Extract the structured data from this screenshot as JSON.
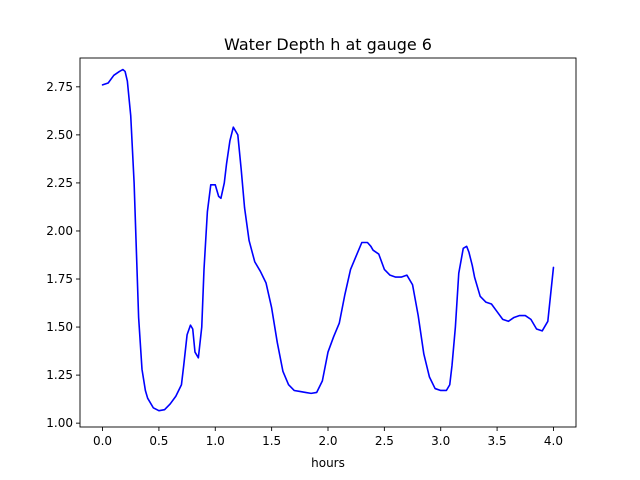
{
  "chart_data": {
    "type": "line",
    "title": "Water Depth h at gauge 6",
    "xlabel": "hours",
    "ylabel": "",
    "xlim": [
      -0.2,
      4.2
    ],
    "ylim": [
      0.98,
      2.9
    ],
    "xticks": [
      0.0,
      0.5,
      1.0,
      1.5,
      2.0,
      2.5,
      3.0,
      3.5,
      4.0
    ],
    "xtick_labels": [
      "0.0",
      "0.5",
      "1.0",
      "1.5",
      "2.0",
      "2.5",
      "3.0",
      "3.5",
      "4.0"
    ],
    "yticks": [
      1.0,
      1.25,
      1.5,
      1.75,
      2.0,
      2.25,
      2.5,
      2.75
    ],
    "ytick_labels": [
      "1.00",
      "1.25",
      "1.50",
      "1.75",
      "2.00",
      "2.25",
      "2.50",
      "2.75"
    ],
    "grid": false,
    "series": [
      {
        "color": "#0000ff",
        "x": [
          0.0,
          0.05,
          0.1,
          0.15,
          0.18,
          0.2,
          0.22,
          0.25,
          0.28,
          0.3,
          0.32,
          0.35,
          0.38,
          0.4,
          0.45,
          0.5,
          0.55,
          0.6,
          0.65,
          0.7,
          0.72,
          0.75,
          0.78,
          0.8,
          0.82,
          0.85,
          0.88,
          0.9,
          0.93,
          0.96,
          1.0,
          1.03,
          1.05,
          1.08,
          1.1,
          1.13,
          1.16,
          1.2,
          1.23,
          1.26,
          1.3,
          1.35,
          1.4,
          1.45,
          1.5,
          1.55,
          1.6,
          1.65,
          1.7,
          1.75,
          1.8,
          1.85,
          1.9,
          1.95,
          2.0,
          2.05,
          2.1,
          2.15,
          2.2,
          2.25,
          2.3,
          2.35,
          2.38,
          2.4,
          2.45,
          2.5,
          2.55,
          2.6,
          2.65,
          2.7,
          2.75,
          2.8,
          2.85,
          2.9,
          2.95,
          3.0,
          3.05,
          3.08,
          3.1,
          3.13,
          3.16,
          3.2,
          3.23,
          3.25,
          3.28,
          3.3,
          3.35,
          3.4,
          3.45,
          3.5,
          3.55,
          3.6,
          3.65,
          3.7,
          3.75,
          3.8,
          3.85,
          3.9,
          3.95,
          4.0
        ],
        "y": [
          2.76,
          2.77,
          2.81,
          2.83,
          2.84,
          2.83,
          2.78,
          2.6,
          2.25,
          1.9,
          1.55,
          1.28,
          1.17,
          1.13,
          1.08,
          1.065,
          1.07,
          1.1,
          1.14,
          1.2,
          1.3,
          1.46,
          1.51,
          1.49,
          1.37,
          1.34,
          1.5,
          1.8,
          2.1,
          2.24,
          2.24,
          2.18,
          2.17,
          2.25,
          2.35,
          2.47,
          2.54,
          2.5,
          2.32,
          2.12,
          1.95,
          1.84,
          1.79,
          1.73,
          1.6,
          1.42,
          1.27,
          1.2,
          1.17,
          1.165,
          1.16,
          1.155,
          1.16,
          1.22,
          1.37,
          1.45,
          1.52,
          1.67,
          1.8,
          1.87,
          1.94,
          1.94,
          1.92,
          1.9,
          1.88,
          1.8,
          1.77,
          1.76,
          1.76,
          1.77,
          1.72,
          1.56,
          1.36,
          1.24,
          1.18,
          1.17,
          1.17,
          1.2,
          1.3,
          1.5,
          1.78,
          1.91,
          1.92,
          1.89,
          1.82,
          1.76,
          1.66,
          1.63,
          1.62,
          1.58,
          1.54,
          1.53,
          1.55,
          1.56,
          1.56,
          1.54,
          1.49,
          1.48,
          1.53,
          1.81
        ]
      }
    ]
  }
}
